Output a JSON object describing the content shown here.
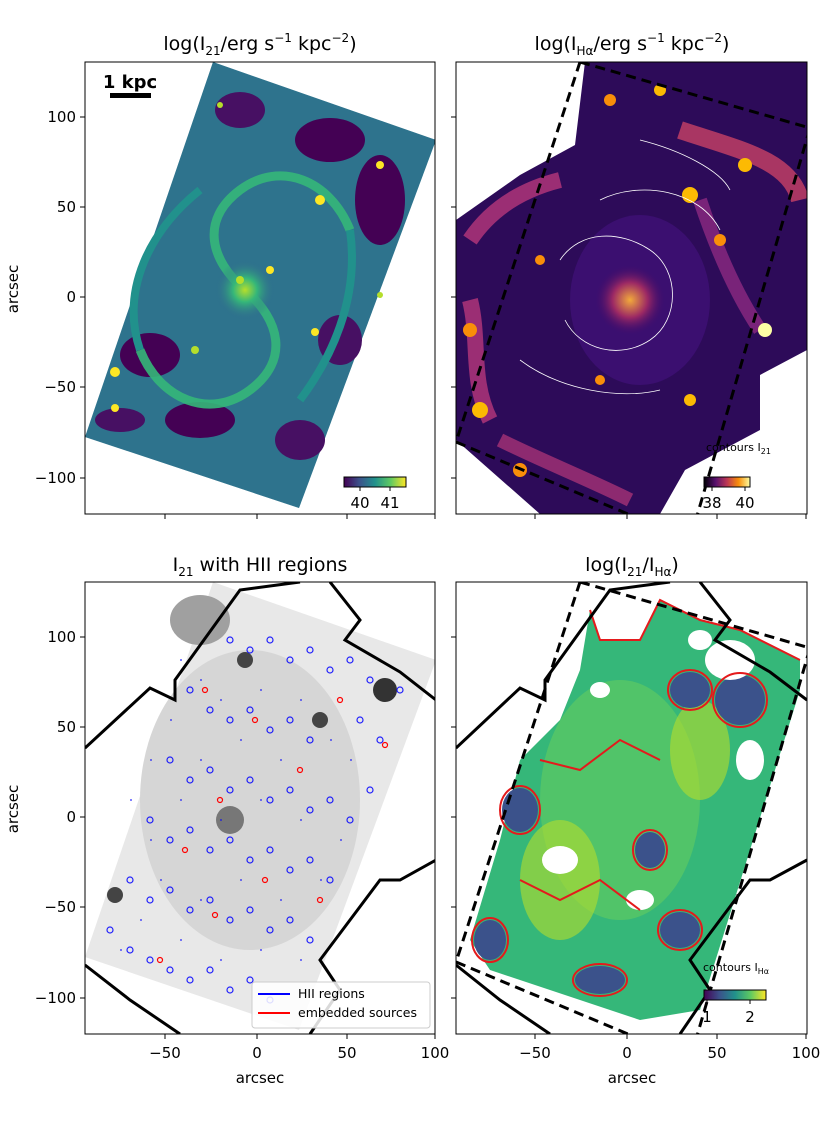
{
  "panels": [
    {
      "title_main": "log(I",
      "title_sub": "21",
      "title_rest": "/erg s",
      "title_sup1": "−1",
      "title_mid": " kpc",
      "title_sup2": "−2",
      "title_end": ")"
    },
    {
      "title_main": "log(I",
      "title_sub": "Hα",
      "title_rest": "/erg s",
      "title_sup1": "−1",
      "title_mid": " kpc",
      "title_sup2": "−2",
      "title_end": ")"
    },
    {
      "title_main": "I",
      "title_sub": "21",
      "title_rest": " with HII regions"
    },
    {
      "title_main": "log(I",
      "title_sub": "21",
      "title_rest": "/I",
      "title_sub2": "Hα",
      "title_end": ")"
    }
  ],
  "scalebar_label": "1 kpc",
  "contour_note_top": {
    "main": "contours I",
    "sub": "21"
  },
  "contour_note_bottom": {
    "main": "contours I",
    "sub": "Hα"
  },
  "colorbars": [
    {
      "ticks": [
        "40",
        "41"
      ],
      "cmap": "viridis"
    },
    {
      "ticks": [
        "38",
        "40"
      ],
      "cmap": "inferno"
    },
    {
      "ticks": [
        "1",
        "2"
      ],
      "cmap": "viridis"
    }
  ],
  "y_ticks": [
    "100",
    "50",
    "0",
    "−50",
    "−100"
  ],
  "x_ticks": [
    "−50",
    "0",
    "50",
    "100"
  ],
  "y_label": "arcsec",
  "x_label": "arcsec",
  "legend": [
    {
      "label": "HII regions",
      "color": "#0000ff"
    },
    {
      "label": "embedded sources",
      "color": "#ff0000"
    }
  ]
}
